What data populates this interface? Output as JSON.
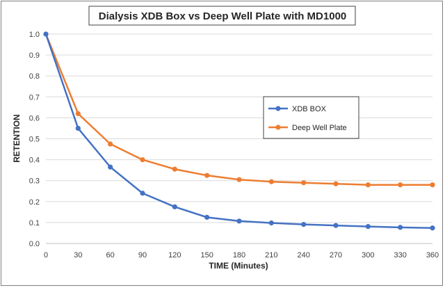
{
  "chart_data": {
    "type": "line",
    "title": "Dialysis XDB Box vs Deep Well Plate with MD1000",
    "xlabel": "TIME (Minutes)",
    "ylabel": "RETENTION",
    "x": [
      0,
      30,
      60,
      90,
      120,
      150,
      180,
      210,
      240,
      270,
      300,
      330,
      360
    ],
    "xlim": [
      0,
      360
    ],
    "ylim": [
      0,
      1.0
    ],
    "x_ticks": [
      "0",
      "30",
      "60",
      "90",
      "120",
      "150",
      "180",
      "210",
      "240",
      "270",
      "300",
      "330",
      "360"
    ],
    "y_ticks": [
      "0.0",
      "0.1",
      "0.2",
      "0.3",
      "0.4",
      "0.5",
      "0.6",
      "0.7",
      "0.8",
      "0.9",
      "1.0"
    ],
    "grid": "horizontal",
    "legend_position": "right",
    "series": [
      {
        "name": "XDB BOX",
        "color": "#4472c4",
        "values": [
          1.0,
          0.55,
          0.365,
          0.24,
          0.175,
          0.125,
          0.107,
          0.098,
          0.091,
          0.086,
          0.081,
          0.077,
          0.074
        ]
      },
      {
        "name": "Deep Well Plate",
        "color": "#ed7d31",
        "values": [
          1.0,
          0.62,
          0.475,
          0.4,
          0.355,
          0.325,
          0.305,
          0.295,
          0.29,
          0.285,
          0.28,
          0.28,
          0.28
        ]
      }
    ]
  }
}
